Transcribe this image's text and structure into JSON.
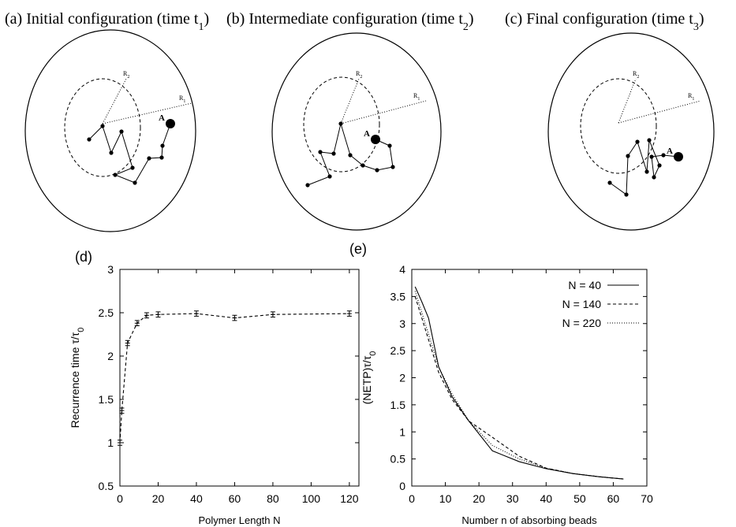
{
  "diagrams": [
    {
      "title": "(a) Initial configuration (time t",
      "title_sub": "1",
      "title_end": ")",
      "r_inner": "R",
      "r_inner_sub": "2",
      "r_outer": "R",
      "r_outer_sub": "1",
      "bead": "A"
    },
    {
      "title": "(b) Intermediate configuration (time t",
      "title_sub": "2",
      "title_end": ")",
      "r_inner": "R",
      "r_inner_sub": "2",
      "r_outer": "R",
      "r_outer_sub": "1",
      "bead": "A"
    },
    {
      "title": "(c) Final configuration (time t",
      "title_sub": "3",
      "title_end": ")",
      "r_inner": "R",
      "r_inner_sub": "2",
      "r_outer": "R",
      "r_outer_sub": "1",
      "bead": "A"
    }
  ],
  "chart_data": [
    {
      "type": "line",
      "title": "(d)",
      "xlabel": "Polymer Length N",
      "ylabel": "Recurrence time τ/τ",
      "ylabel_sub": "0",
      "x": [
        0,
        1,
        4,
        9,
        14,
        20,
        40,
        60,
        80,
        120
      ],
      "series": [
        {
          "color": "#000000",
          "linestyle": "dashed",
          "values": [
            1.0,
            1.37,
            2.15,
            2.38,
            2.47,
            2.48,
            2.49,
            2.44,
            2.48,
            2.49
          ],
          "errors": [
            0.03,
            0.03,
            0.03,
            0.03,
            0.03,
            0.03,
            0.03,
            0.03,
            0.03,
            0.03
          ]
        }
      ],
      "xlim": [
        0,
        125
      ],
      "xticks": [
        0,
        20,
        40,
        60,
        80,
        100,
        120
      ],
      "ylim": [
        0.5,
        3
      ],
      "yticks": [
        0.5,
        1,
        1.5,
        2,
        2.5,
        3
      ]
    },
    {
      "type": "line",
      "title": "(e)",
      "xlabel": "Number n of absorbing beads",
      "ylabel": "(NETP)τ/τ",
      "ylabel_sub": "0",
      "x": [
        1,
        3,
        5,
        8,
        12,
        17,
        24,
        32,
        40,
        48,
        56,
        63
      ],
      "series": [
        {
          "name": "N = 40",
          "color": "#000000",
          "linestyle": "solid",
          "values": [
            3.68,
            3.4,
            3.1,
            2.2,
            1.65,
            1.2,
            0.65,
            0.45,
            0.32,
            0.23,
            0.17,
            0.13
          ]
        },
        {
          "name": "N = 140",
          "color": "#000000",
          "linestyle": "dashed",
          "values": [
            3.5,
            3.1,
            2.7,
            2.1,
            1.6,
            1.2,
            0.9,
            0.55,
            0.33,
            0.23,
            0.17,
            0.13
          ]
        },
        {
          "name": "N = 220",
          "color": "#000000",
          "linestyle": "dotted",
          "values": [
            3.6,
            3.2,
            2.8,
            2.2,
            1.7,
            1.2,
            0.75,
            0.5,
            0.33,
            0.23,
            0.17,
            0.13
          ]
        }
      ],
      "xlim": [
        0,
        70
      ],
      "xticks": [
        0,
        10,
        20,
        30,
        40,
        50,
        60,
        70
      ],
      "ylim": [
        0,
        4
      ],
      "yticks": [
        0,
        0.5,
        1,
        1.5,
        2,
        2.5,
        3,
        3.5,
        4
      ],
      "legend": "top-right"
    }
  ]
}
